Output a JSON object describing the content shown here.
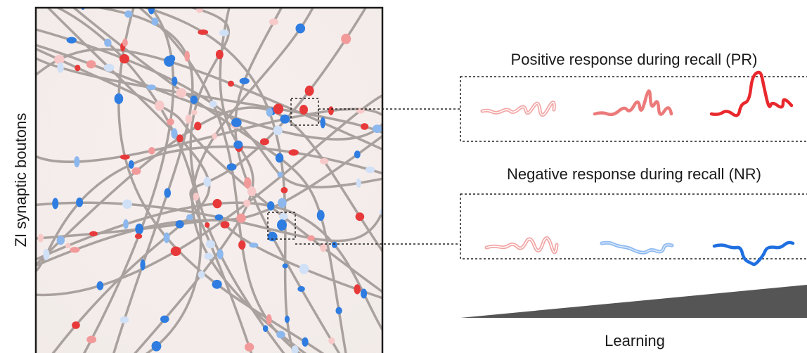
{
  "panel": {
    "y_label": "ZI synaptic boutons"
  },
  "responses": [
    {
      "label": "Positive response during recall (PR)"
    },
    {
      "label": "Negative response during recall (NR)"
    }
  ],
  "learning": {
    "label": "Learning"
  }
}
